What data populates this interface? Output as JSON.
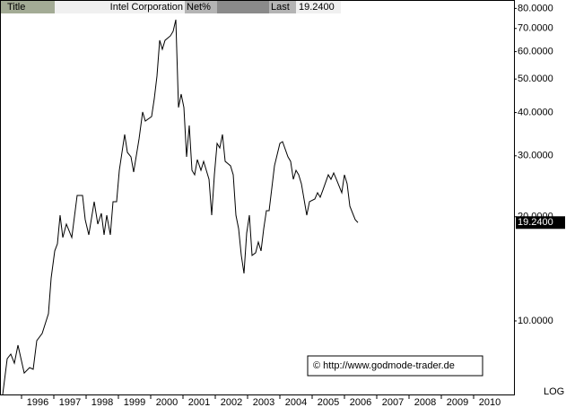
{
  "chart_data": {
    "type": "line",
    "header_label": "Title",
    "title": "Intel Corporation",
    "net_label": "Net%",
    "last_label": "Last",
    "last_value": 19.24,
    "last_value_label": "19.2400",
    "scale_label": "LOG",
    "annotation": "© http://www.godmode-trader.de",
    "log_scale": true,
    "color": "#000000",
    "xlim": [
      1995.333,
      2011.25
    ],
    "ylim": [
      6.13,
      84.6
    ],
    "xticks": [
      1996,
      1997,
      1998,
      1999,
      2000,
      2001,
      2002,
      2003,
      2004,
      2005,
      2006,
      2007,
      2008,
      2009,
      2010
    ],
    "yticks": [
      {
        "value": 10,
        "label": "10.0000"
      },
      {
        "value": 20,
        "label": "20.0000"
      },
      {
        "value": 30,
        "label": "30.0000"
      },
      {
        "value": 40,
        "label": "40.0000"
      },
      {
        "value": 50,
        "label": "50.0000"
      },
      {
        "value": 60,
        "label": "60.0000"
      },
      {
        "value": 70,
        "label": "70.0000"
      },
      {
        "value": 80,
        "label": "80.0000"
      }
    ],
    "x": [
      1995.417,
      1995.556,
      1995.667,
      1995.778,
      1995.889,
      1996.083,
      1996.25,
      1996.361,
      1996.472,
      1996.639,
      1996.833,
      1996.917,
      1997.028,
      1997.111,
      1997.194,
      1997.278,
      1997.389,
      1997.556,
      1997.722,
      1997.889,
      1997.972,
      1998.083,
      1998.25,
      1998.361,
      1998.472,
      1998.556,
      1998.639,
      1998.75,
      1998.833,
      1998.944,
      1999.028,
      1999.194,
      1999.278,
      1999.389,
      1999.472,
      1999.639,
      1999.75,
      1999.833,
      2000.028,
      2000.111,
      2000.194,
      2000.278,
      2000.361,
      2000.444,
      2000.611,
      2000.694,
      2000.778,
      2000.861,
      2000.944,
      2001.028,
      2001.111,
      2001.194,
      2001.278,
      2001.361,
      2001.444,
      2001.556,
      2001.639,
      2001.806,
      2001.889,
      2001.972,
      2002.056,
      2002.139,
      2002.222,
      2002.306,
      2002.472,
      2002.556,
      2002.639,
      2002.722,
      2002.806,
      2002.889,
      2002.972,
      2003.056,
      2003.139,
      2003.25,
      2003.333,
      2003.417,
      2003.5,
      2003.583,
      2003.667,
      2003.75,
      2003.833,
      2004.0,
      2004.083,
      2004.25,
      2004.333,
      2004.417,
      2004.5,
      2004.583,
      2004.667,
      2004.833,
      2004.917,
      2005.083,
      2005.167,
      2005.25,
      2005.333,
      2005.5,
      2005.583,
      2005.667,
      2005.75,
      2005.917,
      2006.0,
      2006.083,
      2006.167,
      2006.333,
      2006.417
    ],
    "values": [
      6.13,
      7.78,
      8.02,
      7.55,
      8.51,
      7.07,
      7.33,
      7.25,
      8.77,
      9.2,
      10.49,
      13.31,
      15.93,
      16.71,
      20.21,
      17.42,
      19.05,
      17.42,
      23.05,
      23.05,
      19.62,
      17.73,
      22.11,
      19.05,
      20.46,
      17.73,
      20.21,
      17.73,
      22.11,
      22.11,
      27.24,
      34.58,
      30.69,
      29.8,
      26.92,
      33.57,
      40.15,
      37.81,
      38.96,
      43.89,
      50.96,
      64.71,
      60.95,
      64.71,
      66.66,
      68.68,
      74.22,
      41.37,
      45.22,
      41.37,
      29.8,
      36.71,
      27.24,
      26.44,
      29.26,
      27.24,
      28.92,
      25.66,
      20.21,
      26.44,
      32.58,
      31.62,
      34.58,
      28.92,
      28.07,
      26.44,
      20.21,
      18.48,
      15.46,
      13.72,
      17.94,
      20.21,
      15.46,
      15.74,
      16.9,
      15.93,
      18.48,
      20.83,
      20.83,
      24.17,
      28.07,
      32.58,
      32.97,
      29.8,
      28.92,
      25.66,
      27.24,
      26.44,
      24.91,
      20.21,
      22.11,
      22.51,
      23.47,
      22.78,
      23.89,
      26.44,
      25.66,
      26.76,
      25.66,
      23.47,
      26.44,
      24.91,
      21.46,
      19.62,
      19.24
    ]
  }
}
